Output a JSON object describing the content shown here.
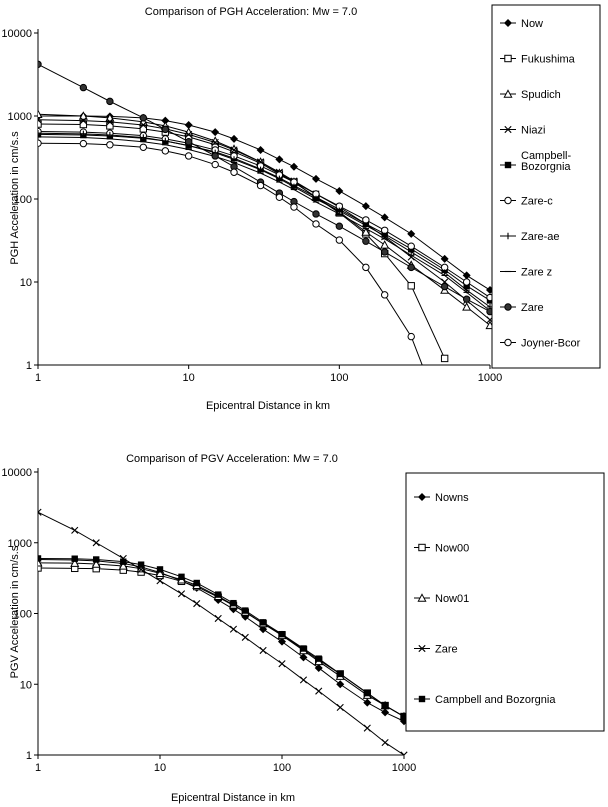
{
  "chart_data": [
    {
      "type": "line",
      "title": "Comparison of PGH Acceleration: Mw = 7.0",
      "xlabel": "Epicentral Distance in km",
      "ylabel": "PGH Acceleration in cm/s.s",
      "xscale": "log",
      "yscale": "log",
      "xlim": [
        1,
        1000
      ],
      "ylim": [
        1,
        10000
      ],
      "xticks": [
        "1",
        "10",
        "100",
        "1000"
      ],
      "yticks": [
        "1",
        "10",
        "100",
        "1000",
        "10000"
      ],
      "grid": false,
      "legend_position": "right",
      "x": [
        1,
        2,
        3,
        5,
        7,
        10,
        15,
        20,
        30,
        40,
        50,
        70,
        100,
        150,
        200,
        300,
        500,
        700,
        1000
      ],
      "series": [
        {
          "name": "Now",
          "marker": "diamond-filled",
          "values": [
            1000,
            1000,
            990,
            950,
            880,
            780,
            640,
            530,
            390,
            300,
            245,
            175,
            125,
            82,
            60,
            38,
            19,
            12,
            8
          ]
        },
        {
          "name": "Fukushima",
          "marker": "square-open",
          "values": [
            800,
            790,
            760,
            700,
            640,
            560,
            450,
            370,
            270,
            200,
            160,
            105,
            68,
            38,
            22,
            9,
            1.2,
            null,
            null
          ]
        },
        {
          "name": "Spudich",
          "marker": "triangle-filled",
          "values": [
            1050,
            1000,
            950,
            850,
            760,
            640,
            500,
            400,
            280,
            205,
            160,
            105,
            70,
            40,
            28,
            16,
            8,
            5,
            3
          ]
        },
        {
          "name": "Niazi",
          "marker": "x",
          "values": [
            900,
            880,
            850,
            780,
            700,
            600,
            480,
            390,
            280,
            210,
            165,
            115,
            80,
            50,
            35,
            20,
            10,
            6,
            3.5
          ]
        },
        {
          "name": "Campbell-Bozorgnia",
          "marker": "square-filled",
          "values": [
            600,
            590,
            575,
            540,
            500,
            440,
            370,
            310,
            230,
            180,
            145,
            105,
            75,
            50,
            38,
            25,
            14,
            9,
            6
          ]
        },
        {
          "name": "Zare-c",
          "marker": "circle-open",
          "values": [
            650,
            640,
            620,
            580,
            530,
            470,
            390,
            330,
            250,
            195,
            160,
            115,
            82,
            56,
            42,
            27,
            15,
            10,
            6.5
          ]
        },
        {
          "name": "Zare-ae",
          "marker": "plus",
          "values": [
            620,
            610,
            590,
            550,
            500,
            440,
            360,
            300,
            225,
            175,
            140,
            100,
            72,
            48,
            36,
            23,
            13,
            8,
            5
          ]
        },
        {
          "name": "Zare z",
          "marker": "dash",
          "values": [
            560,
            550,
            530,
            490,
            450,
            395,
            325,
            275,
            205,
            160,
            130,
            92,
            66,
            44,
            33,
            21,
            12,
            7.5,
            4.5
          ]
        },
        {
          "name": "Zare",
          "marker": "circle-filled",
          "values": [
            4200,
            2200,
            1500,
            950,
            690,
            490,
            330,
            245,
            160,
            118,
            93,
            66,
            47,
            31,
            23,
            15,
            8.8,
            6.2,
            4.4
          ]
        },
        {
          "name": "Joyner-Bcor",
          "marker": "circle-open",
          "values": [
            470,
            465,
            450,
            420,
            380,
            330,
            260,
            210,
            145,
            105,
            80,
            50,
            32,
            15,
            7,
            2.2,
            0.2,
            null,
            null
          ]
        }
      ]
    },
    {
      "type": "line",
      "title": "Comparison of PGV Acceleration: Mw = 7.0",
      "xlabel": "Epicentral Distance in km",
      "ylabel": "PGV Acceleration in cm/s.s",
      "xscale": "log",
      "yscale": "log",
      "xlim": [
        1,
        1000
      ],
      "ylim": [
        1,
        10000
      ],
      "xticks": [
        "1",
        "10",
        "100",
        "1000"
      ],
      "yticks": [
        "1",
        "10",
        "100",
        "1000",
        "10000"
      ],
      "grid": false,
      "legend_position": "right",
      "x": [
        1,
        2,
        3,
        5,
        7,
        10,
        15,
        20,
        30,
        40,
        50,
        70,
        100,
        150,
        200,
        300,
        500,
        700,
        1000
      ],
      "series": [
        {
          "name": "Nowns",
          "marker": "diamond-filled",
          "values": [
            580,
            570,
            555,
            510,
            455,
            380,
            290,
            230,
            155,
            115,
            90,
            60,
            40,
            24,
            17,
            10,
            5.5,
            4,
            3
          ]
        },
        {
          "name": "Now00",
          "marker": "square-open",
          "values": [
            440,
            435,
            430,
            410,
            385,
            345,
            285,
            240,
            170,
            130,
            104,
            72,
            50,
            31,
            22,
            14,
            7.5,
            5,
            3.5
          ]
        },
        {
          "name": "Now01",
          "marker": "triangle-filled",
          "values": [
            520,
            515,
            500,
            470,
            430,
            370,
            300,
            250,
            175,
            132,
            105,
            72,
            49,
            30,
            21,
            13,
            7,
            5,
            3.5
          ]
        },
        {
          "name": "Zare",
          "marker": "x",
          "values": [
            2700,
            1500,
            1000,
            600,
            420,
            290,
            190,
            138,
            85,
            60,
            46,
            30,
            19.5,
            11.5,
            8,
            4.7,
            2.4,
            1.5,
            1
          ]
        },
        {
          "name": "Campbell and Bozorgnia",
          "marker": "square-filled",
          "values": [
            600,
            595,
            580,
            540,
            490,
            420,
            330,
            270,
            185,
            140,
            110,
            75,
            51,
            32,
            23,
            14,
            7.5,
            5,
            3.5
          ]
        }
      ]
    }
  ]
}
